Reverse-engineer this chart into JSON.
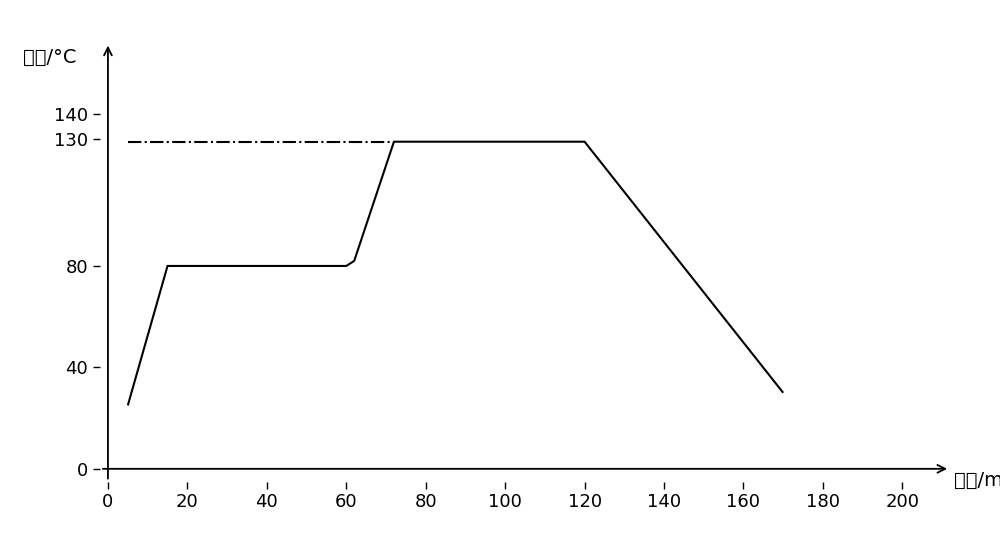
{
  "line_x": [
    5,
    15,
    60,
    62,
    72,
    120,
    170
  ],
  "line_y": [
    25,
    80,
    80,
    82,
    129,
    129,
    30
  ],
  "ref_line_x": [
    5,
    72
  ],
  "ref_line_y": [
    129,
    129
  ],
  "xlim": [
    -2,
    212
  ],
  "ylim": [
    -5,
    168
  ],
  "xticks": [
    0,
    20,
    40,
    60,
    80,
    100,
    120,
    140,
    160,
    180,
    200
  ],
  "yticks": [
    0,
    40,
    80,
    130,
    140
  ],
  "xlabel": "时间/min",
  "ylabel": "温度/°C",
  "line_color": "#000000",
  "ref_line_color": "#000000",
  "background_color": "#ffffff",
  "line_width": 1.5,
  "axis_arrow_color": "#000000",
  "tick_fontsize": 13,
  "label_fontsize": 14
}
